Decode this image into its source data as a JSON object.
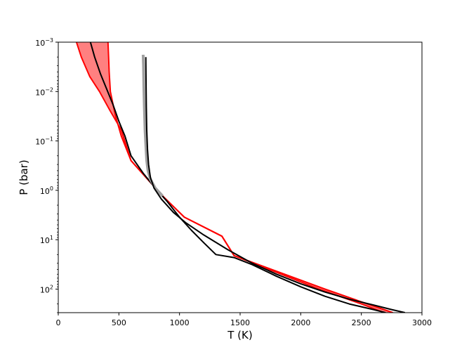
{
  "chart_data": {
    "type": "line",
    "xlabel": "T (K)",
    "ylabel": "P (bar)",
    "xlim": [
      0,
      3000
    ],
    "ylim": [
      300,
      0.001
    ],
    "y_scale": "log",
    "y_inverted": true,
    "grid": false,
    "x_ticks": [
      {
        "value": 0,
        "label": "0"
      },
      {
        "value": 500,
        "label": "500"
      },
      {
        "value": 1000,
        "label": "1000"
      },
      {
        "value": 1500,
        "label": "1500"
      },
      {
        "value": 2000,
        "label": "2000"
      },
      {
        "value": 2500,
        "label": "2500"
      },
      {
        "value": 3000,
        "label": "3000"
      }
    ],
    "y_ticks": [
      {
        "value": 0.001,
        "base": "10",
        "exp": "−3"
      },
      {
        "value": 0.01,
        "base": "10",
        "exp": "−2"
      },
      {
        "value": 0.1,
        "base": "10",
        "exp": "−1"
      },
      {
        "value": 1,
        "base": "10",
        "exp": "0"
      },
      {
        "value": 10,
        "base": "10",
        "exp": "1"
      },
      {
        "value": 100,
        "base": "10",
        "exp": "2"
      }
    ],
    "series": [
      {
        "role": "retrieved-band",
        "fill": "#ff8080",
        "stroke": "#ff0000",
        "upper_T": [
          410,
          415,
          420,
          430,
          470,
          520,
          600,
          860,
          1040,
          1350,
          1450,
          2200,
          2550,
          2760
        ],
        "upper_P": [
          0.001,
          0.002,
          0.004,
          0.01,
          0.03,
          0.08,
          0.25,
          1.3,
          3.5,
          8.5,
          21,
          100,
          200,
          300
        ],
        "lower_T": [
          150,
          190,
          260,
          340,
          430,
          520,
          600,
          860,
          1040,
          1350,
          1450,
          2150,
          2500,
          2690
        ],
        "lower_P": [
          0.001,
          0.002,
          0.005,
          0.01,
          0.025,
          0.06,
          0.25,
          1.3,
          3.5,
          8.5,
          21,
          100,
          200,
          300
        ]
      },
      {
        "role": "retrieved-median",
        "color": "#000000",
        "x": [
          265,
          300,
          350,
          400,
          450,
          500,
          550,
          600,
          700,
          800,
          900,
          1000,
          1100,
          1200,
          1300,
          1450,
          1600,
          1800,
          2000,
          2200,
          2400,
          2600,
          2700
        ],
        "y": [
          0.001,
          0.002,
          0.0045,
          0.009,
          0.018,
          0.04,
          0.08,
          0.2,
          0.45,
          0.9,
          1.7,
          3.5,
          6.5,
          11.5,
          20,
          23,
          32,
          55,
          90,
          140,
          200,
          260,
          300
        ]
      },
      {
        "role": "reference-band",
        "color": "#a0a0a0",
        "x": [
          700,
          703,
          706,
          710,
          716,
          722,
          730,
          740,
          760,
          800,
          860
        ],
        "y": [
          0.0018,
          0.003,
          0.008,
          0.02,
          0.06,
          0.12,
          0.25,
          0.4,
          0.6,
          0.9,
          1.3
        ]
      },
      {
        "role": "reference-profile",
        "color": "#000000",
        "x": [
          722,
          723,
          724,
          726,
          730,
          736,
          745,
          760,
          790,
          850,
          950,
          1050,
          1200,
          1400,
          1600,
          1800,
          2000,
          2200,
          2400,
          2600,
          2750,
          2860
        ],
        "y": [
          0.002,
          0.003,
          0.006,
          0.02,
          0.06,
          0.15,
          0.3,
          0.55,
          0.9,
          1.5,
          2.8,
          4.5,
          8,
          16,
          30,
          50,
          78,
          115,
          160,
          210,
          260,
          300
        ]
      }
    ]
  }
}
